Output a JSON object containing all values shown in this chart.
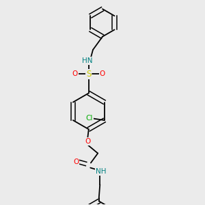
{
  "background_color": "#ebebeb",
  "bond_color": "#000000",
  "atom_colors": {
    "N": "#008080",
    "O": "#ff0000",
    "S": "#cccc00",
    "Cl": "#00aa00",
    "C": "#000000"
  },
  "figsize": [
    3.0,
    3.0
  ],
  "dpi": 100
}
